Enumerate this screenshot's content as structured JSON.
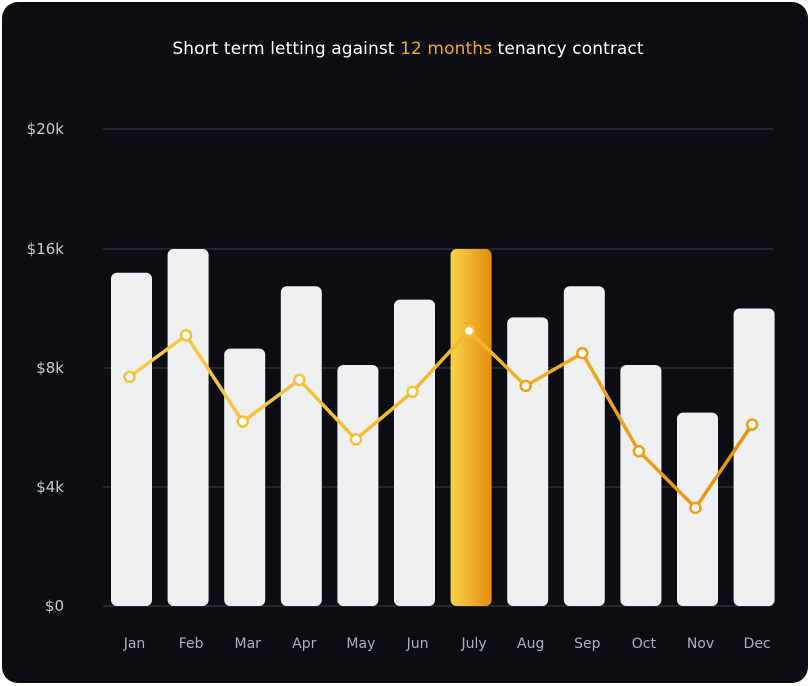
{
  "title": {
    "prefix": "Short term letting against ",
    "highlight": "12 months",
    "suffix": " tenancy contract"
  },
  "colors": {
    "background": "#0b0d12",
    "bar": "#eff0f1",
    "highlight_bar_top": "#f9c43a",
    "highlight_bar_bottom": "#e8940e",
    "line_start": "#f6c94a",
    "line_end": "#e9920e",
    "grid": "#3a3f4a",
    "accent_text": "#f5a814"
  },
  "chart_data": {
    "type": "bar",
    "title": "Short term letting against 12 months tenancy contract",
    "categories": [
      "Jan",
      "Feb",
      "Mar",
      "Apr",
      "May",
      "Jun",
      "July",
      "Aug",
      "Sep",
      "Oct",
      "Nov",
      "Dec"
    ],
    "series": [
      {
        "type": "bar",
        "values": [
          14400,
          16000,
          9300,
          13500,
          8200,
          12600,
          16000,
          11400,
          13500,
          8200,
          6500,
          12000
        ]
      },
      {
        "type": "line",
        "values": [
          7700,
          10200,
          6200,
          7600,
          5600,
          7200,
          10500,
          7400,
          9000,
          5200,
          3300,
          6100
        ]
      }
    ],
    "highlight_category": "July",
    "y_ticks": [
      0,
      4000,
      8000,
      16000,
      20000
    ],
    "y_tick_labels": [
      "$0",
      "$4k",
      "$8k",
      "$16k",
      "$20k"
    ],
    "ylim": [
      0,
      20000
    ],
    "grid": true,
    "legend": "none",
    "xlabel": "",
    "ylabel": ""
  }
}
